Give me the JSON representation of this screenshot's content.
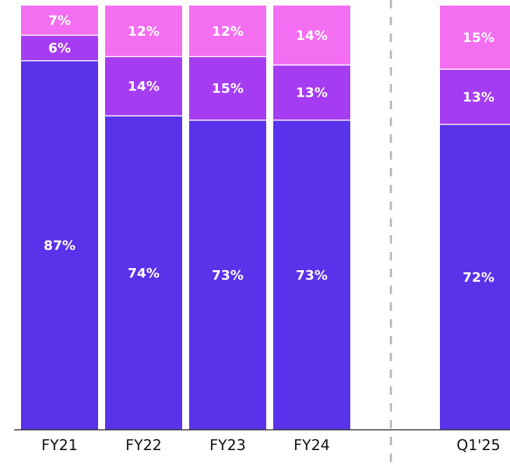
{
  "chart_data": {
    "type": "stacked_bar",
    "categories": [
      "FY21",
      "FY22",
      "FY23",
      "FY24",
      "Q1'25"
    ],
    "ylim": [
      0,
      100
    ],
    "series": [
      {
        "color": "#5a32ea",
        "values": [
          87,
          74,
          73,
          73,
          72
        ],
        "value_labels": [
          "87%",
          "74%",
          "73%",
          "73%",
          "72%"
        ]
      },
      {
        "color": "#a63cf2",
        "values": [
          6,
          14,
          15,
          13,
          13
        ],
        "value_labels": [
          "6%",
          "14%",
          "15%",
          "13%",
          "13%"
        ]
      },
      {
        "color": "#f46ef2",
        "values": [
          7,
          12,
          12,
          14,
          15
        ],
        "value_labels": [
          "7%",
          "12%",
          "12%",
          "14%",
          "15%"
        ]
      }
    ]
  }
}
